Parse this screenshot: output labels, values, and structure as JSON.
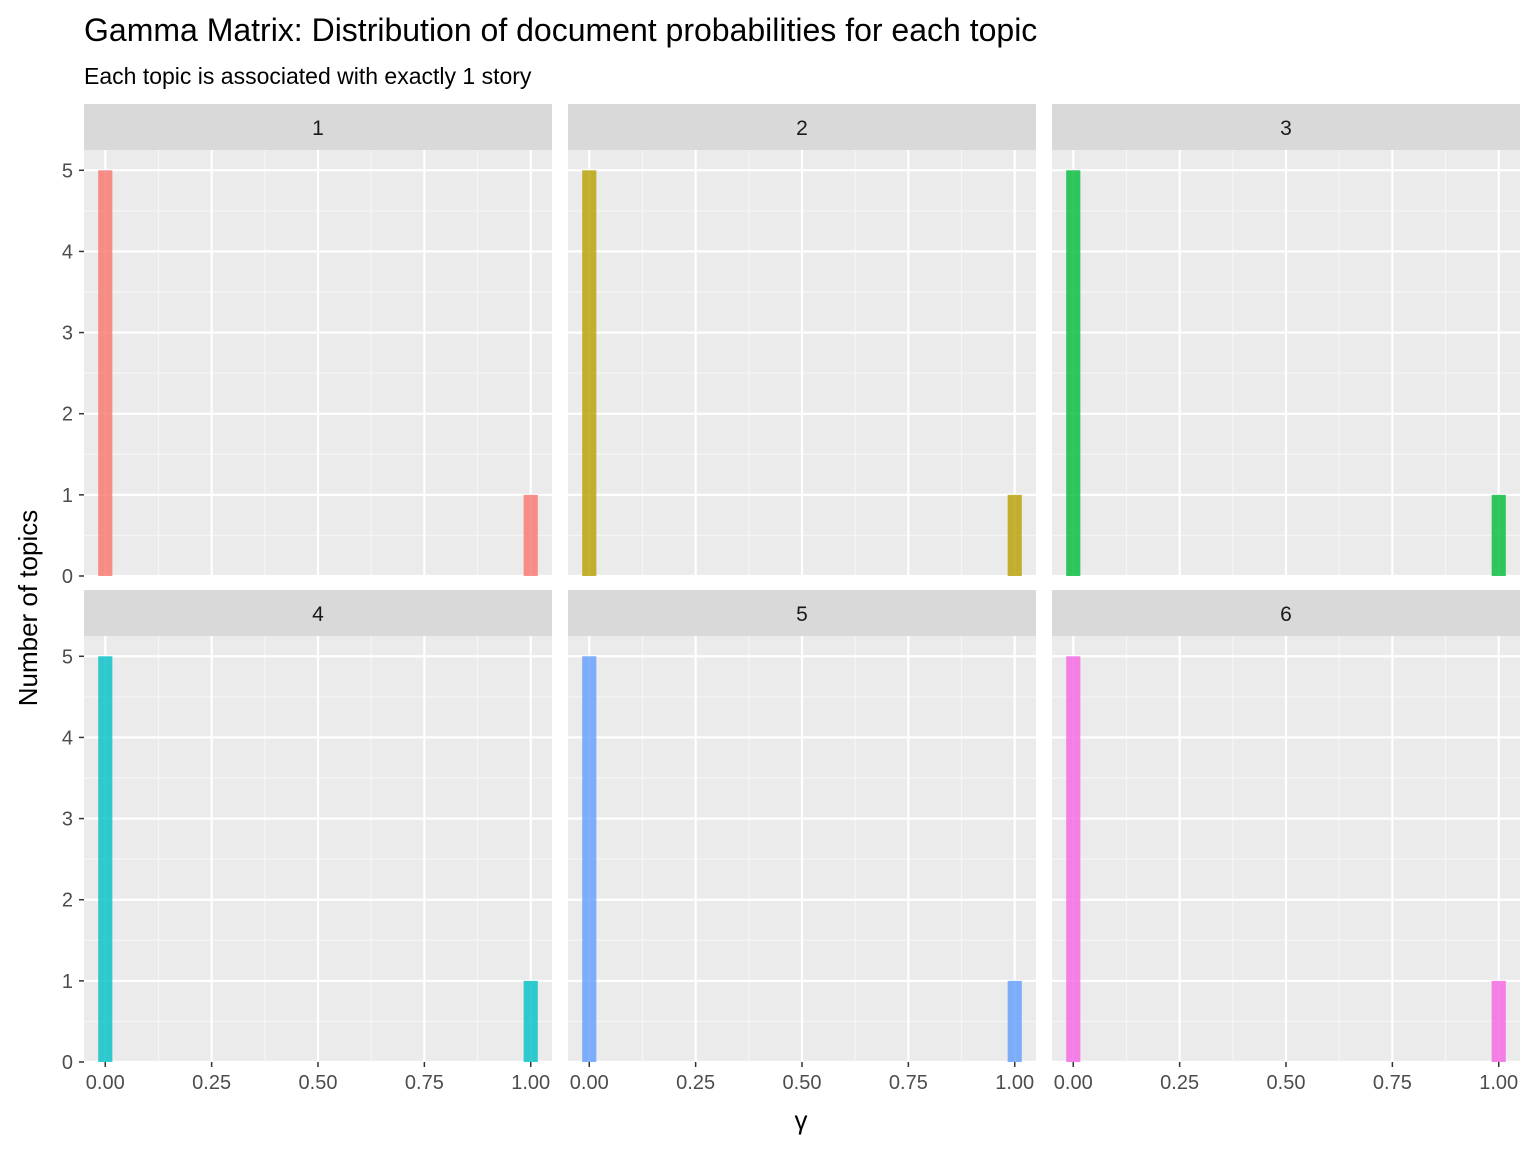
{
  "chart_data": {
    "type": "bar",
    "title": "Gamma Matrix: Distribution of document probabilities for each topic",
    "subtitle": "Each topic is associated with exactly 1 story",
    "xlabel": "γ",
    "ylabel": "Number of topics",
    "xlim": [
      -0.05,
      1.05
    ],
    "ylim": [
      0,
      5.25
    ],
    "x_ticks": [
      "0.00",
      "0.25",
      "0.50",
      "0.75",
      "1.00"
    ],
    "y_ticks": [
      "0",
      "1",
      "2",
      "3",
      "4",
      "5"
    ],
    "grid": true,
    "layout": "facet grid 2 rows x 3 columns",
    "series": [
      {
        "facet": "1",
        "color": "#F8766D",
        "x": [
          0.0,
          1.0
        ],
        "values": [
          5,
          1
        ]
      },
      {
        "facet": "2",
        "color": "#B79F00",
        "x": [
          0.0,
          1.0
        ],
        "values": [
          5,
          1
        ]
      },
      {
        "facet": "3",
        "color": "#00BA38",
        "x": [
          0.0,
          1.0
        ],
        "values": [
          5,
          1
        ]
      },
      {
        "facet": "4",
        "color": "#00BFC4",
        "x": [
          0.0,
          1.0
        ],
        "values": [
          5,
          1
        ]
      },
      {
        "facet": "5",
        "color": "#619CFF",
        "x": [
          0.0,
          1.0
        ],
        "values": [
          5,
          1
        ]
      },
      {
        "facet": "6",
        "color": "#F564E3",
        "x": [
          0.0,
          1.0
        ],
        "values": [
          5,
          1
        ]
      }
    ]
  }
}
